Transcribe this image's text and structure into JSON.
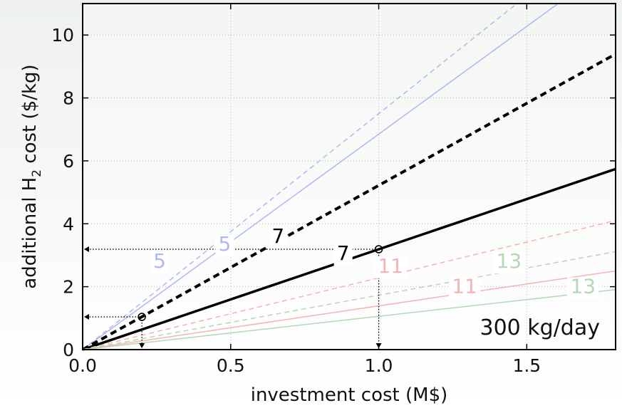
{
  "chart_data": {
    "type": "line",
    "title": "",
    "xlabel": "investment cost (M$)",
    "ylabel_prefix": "additional H",
    "ylabel_sub": "2",
    "ylabel_suffix": " cost ($/kg)",
    "xlim": [
      0,
      1.8
    ],
    "ylim": [
      0,
      11
    ],
    "x_ticks": [
      0.0,
      0.5,
      1.0,
      1.5
    ],
    "x_tick_labels": [
      "0.0",
      "0.5",
      "1.0",
      "1.5"
    ],
    "y_ticks": [
      0,
      2,
      4,
      6,
      8,
      10
    ],
    "y_tick_labels": [
      "0",
      "2",
      "4",
      "6",
      "8",
      "10"
    ],
    "grid": true,
    "annotation": "300 kg/day",
    "series": [
      {
        "label": "5",
        "slope": 7.5,
        "color": "#b0b8ee",
        "style": "dashed",
        "width": 1.5,
        "label_at": [
          0.26,
          2.6
        ]
      },
      {
        "label": "5",
        "slope": 6.85,
        "color": "#b0b8ee",
        "style": "solid",
        "width": 1.5,
        "label_at": [
          0.48,
          3.15
        ]
      },
      {
        "label": "7",
        "slope": 5.22,
        "color": "#000000",
        "style": "dashed",
        "width": 4,
        "label_at": [
          0.66,
          3.4
        ]
      },
      {
        "label": "7",
        "slope": 3.19,
        "color": "#000000",
        "style": "solid",
        "width": 3.5,
        "label_at": [
          0.88,
          2.85
        ]
      },
      {
        "label": "11",
        "slope": 2.28,
        "color": "#f4b4b4",
        "style": "dashed",
        "width": 1.5,
        "label_at": [
          1.04,
          2.45
        ]
      },
      {
        "label": "11",
        "slope": 1.39,
        "color": "#f4b4b4",
        "style": "solid",
        "width": 1.5,
        "label_at": [
          1.29,
          1.8
        ]
      },
      {
        "label": "13",
        "slope": 1.73,
        "color": "#b4d8b4",
        "style": "dashed",
        "width": 1.5,
        "label_at": [
          1.44,
          2.6
        ]
      },
      {
        "label": "13",
        "slope": 1.06,
        "color": "#b4d8b4",
        "style": "solid",
        "width": 1.5,
        "label_at": [
          1.69,
          1.8
        ]
      }
    ],
    "markers": [
      {
        "x": 0.2,
        "y": 1.04
      },
      {
        "x": 1.0,
        "y": 3.19
      }
    ]
  }
}
